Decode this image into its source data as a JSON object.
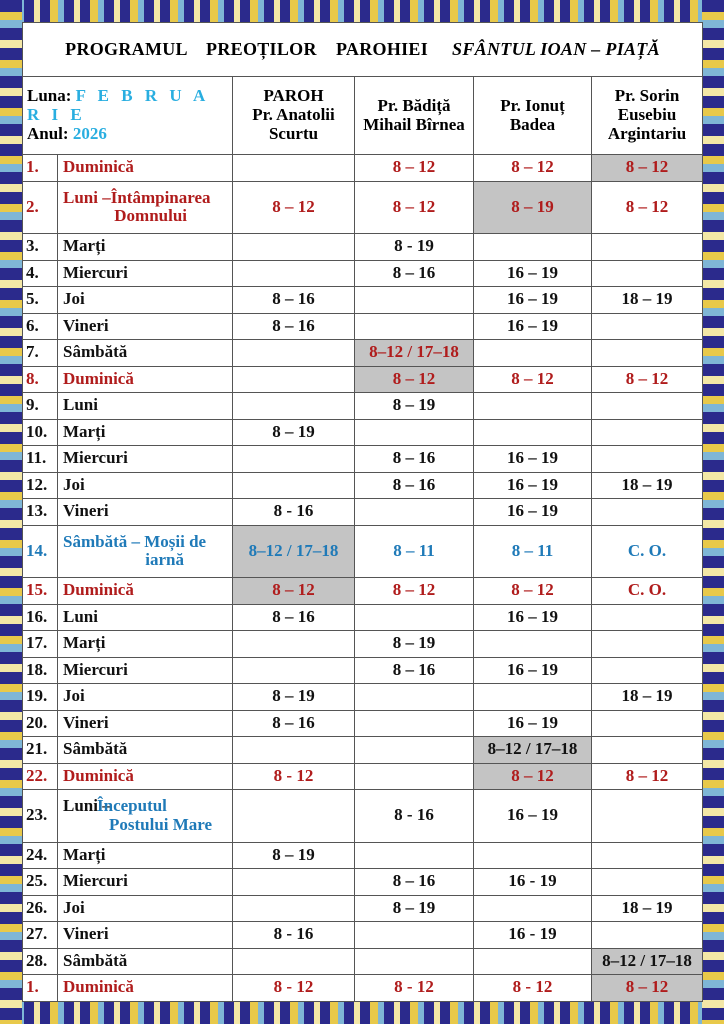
{
  "title": {
    "main": "PROGRAMUL    PREOȚILOR    PAROHIEI",
    "parish": "SFÂNTUL IOAN – PIAȚĂ"
  },
  "header": {
    "luna_label": "Luna:",
    "luna_value": "F E B R U A R I E",
    "anul_label": "Anul:",
    "anul_value": "2026",
    "columns": [
      [
        "PAROH",
        "Pr. Anatolii",
        "Scurtu"
      ],
      [
        "Pr. Bădiță",
        "Mihail Bîrnea"
      ],
      [
        "Pr. Ionuț",
        "Badea"
      ],
      [
        "Pr. Sorin",
        "Eusebiu",
        "Argintariu"
      ]
    ]
  },
  "colors": {
    "red": "#b01c1c",
    "blue": "#1f7ab8",
    "cyan": "#29aee0",
    "shade": "#c4c4c4"
  },
  "rows": [
    {
      "n": "1.",
      "day": [
        "Duminică"
      ],
      "color": "red",
      "cells": [
        "",
        "8 – 12",
        "8 – 12",
        "8 – 12"
      ],
      "shaded": [
        3
      ]
    },
    {
      "n": "2.",
      "day": [
        "Luni –Întâmpinarea",
        "Domnului"
      ],
      "color": "red",
      "tall": true,
      "cells": [
        "8 – 12",
        "8 – 12",
        "8 – 19",
        "8 – 12"
      ],
      "shaded": [
        2
      ]
    },
    {
      "n": "3.",
      "day": [
        "Marți"
      ],
      "color": "black",
      "cells": [
        "",
        "8 - 19",
        "",
        ""
      ]
    },
    {
      "n": "4.",
      "day": [
        "Miercuri"
      ],
      "color": "black",
      "cells": [
        "",
        "8 – 16",
        "16 – 19",
        ""
      ]
    },
    {
      "n": "5.",
      "day": [
        "Joi"
      ],
      "color": "black",
      "cells": [
        "8 – 16",
        "",
        "16 – 19",
        "18 – 19"
      ]
    },
    {
      "n": "6.",
      "day": [
        "Vineri"
      ],
      "color": "black",
      "cells": [
        "8 – 16",
        "",
        "16 – 19",
        ""
      ]
    },
    {
      "n": "7.",
      "day": [
        "Sâmbătă"
      ],
      "color": "black",
      "cells": [
        "",
        "8–12 / 17–18",
        "",
        ""
      ],
      "shaded": [
        1
      ],
      "cellcolor": {
        "1": "red"
      }
    },
    {
      "n": "8.",
      "day": [
        "Duminică"
      ],
      "color": "red",
      "cells": [
        "",
        "8 – 12",
        "8 – 12",
        "8 – 12"
      ],
      "shaded": [
        1
      ]
    },
    {
      "n": "9.",
      "day": [
        "Luni"
      ],
      "color": "black",
      "cells": [
        "",
        "8 – 19",
        "",
        ""
      ]
    },
    {
      "n": "10.",
      "day": [
        "Marți"
      ],
      "color": "black",
      "cells": [
        "8 – 19",
        "",
        "",
        ""
      ]
    },
    {
      "n": "11.",
      "day": [
        "Miercuri"
      ],
      "color": "black",
      "cells": [
        "",
        "8 – 16",
        "16 – 19",
        ""
      ]
    },
    {
      "n": "12.",
      "day": [
        "Joi"
      ],
      "color": "black",
      "cells": [
        "",
        "8 – 16",
        "16 – 19",
        "18 – 19"
      ]
    },
    {
      "n": "13.",
      "day": [
        "Vineri"
      ],
      "color": "black",
      "cells": [
        "8 - 16",
        "",
        "16 – 19",
        ""
      ]
    },
    {
      "n": "14.",
      "day": [
        "Sâmbătă – Moșii de",
        "iarnă"
      ],
      "color": "blue",
      "tall": true,
      "cells": [
        "8–12 / 17–18",
        "8 – 11",
        "8 – 11",
        "C. O."
      ],
      "shaded": [
        0
      ]
    },
    {
      "n": "15.",
      "day": [
        "Duminică"
      ],
      "color": "red",
      "cells": [
        "8 – 12",
        "8 – 12",
        "8 – 12",
        "C. O."
      ],
      "shaded": [
        0
      ]
    },
    {
      "n": "16.",
      "day": [
        "Luni"
      ],
      "color": "black",
      "cells": [
        "8 – 16",
        "",
        "16 – 19",
        ""
      ]
    },
    {
      "n": "17.",
      "day": [
        "Marți"
      ],
      "color": "black",
      "cells": [
        "",
        "8 – 19",
        "",
        ""
      ]
    },
    {
      "n": "18.",
      "day": [
        "Miercuri"
      ],
      "color": "black",
      "cells": [
        "",
        "8 – 16",
        "16 – 19",
        ""
      ]
    },
    {
      "n": "19.",
      "day": [
        "Joi"
      ],
      "color": "black",
      "cells": [
        "8 – 19",
        "",
        "",
        "18 – 19"
      ]
    },
    {
      "n": "20.",
      "day": [
        "Vineri"
      ],
      "color": "black",
      "cells": [
        "8 – 16",
        "",
        "16 – 19",
        ""
      ]
    },
    {
      "n": "21.",
      "day": [
        "Sâmbătă"
      ],
      "color": "black",
      "cells": [
        "",
        "",
        "8–12 / 17–18",
        ""
      ],
      "shaded": [
        2
      ]
    },
    {
      "n": "22.",
      "day": [
        "Duminică"
      ],
      "color": "red",
      "cells": [
        "8 - 12",
        "",
        "8 – 12",
        "8 – 12"
      ],
      "shaded": [
        2
      ]
    },
    {
      "n": "23.",
      "day": [
        "Luni – ",
        "Începutul",
        "Postului Mare"
      ],
      "color": "black",
      "daycolor": "blue",
      "tall": true,
      "cells": [
        "",
        "8 - 16",
        "16 – 19",
        ""
      ]
    },
    {
      "n": "24.",
      "day": [
        "Marți"
      ],
      "color": "black",
      "cells": [
        "8 – 19",
        "",
        "",
        ""
      ]
    },
    {
      "n": "25.",
      "day": [
        "Miercuri"
      ],
      "color": "black",
      "cells": [
        "",
        "8 – 16",
        "16 - 19",
        ""
      ]
    },
    {
      "n": "26.",
      "day": [
        "Joi"
      ],
      "color": "black",
      "cells": [
        "",
        "8 – 19",
        "",
        "18 – 19"
      ]
    },
    {
      "n": "27.",
      "day": [
        "Vineri"
      ],
      "color": "black",
      "cells": [
        "8 - 16",
        "",
        "16 - 19",
        ""
      ]
    },
    {
      "n": "28.",
      "day": [
        "Sâmbătă"
      ],
      "color": "black",
      "cells": [
        "",
        "",
        "",
        "8–12 / 17–18"
      ],
      "shaded": [
        3
      ]
    },
    {
      "n": "1.",
      "day": [
        "Duminică"
      ],
      "color": "red",
      "cells": [
        "8 - 12",
        "8 - 12",
        "8 - 12",
        "8 – 12"
      ],
      "shaded": [
        3
      ]
    }
  ]
}
